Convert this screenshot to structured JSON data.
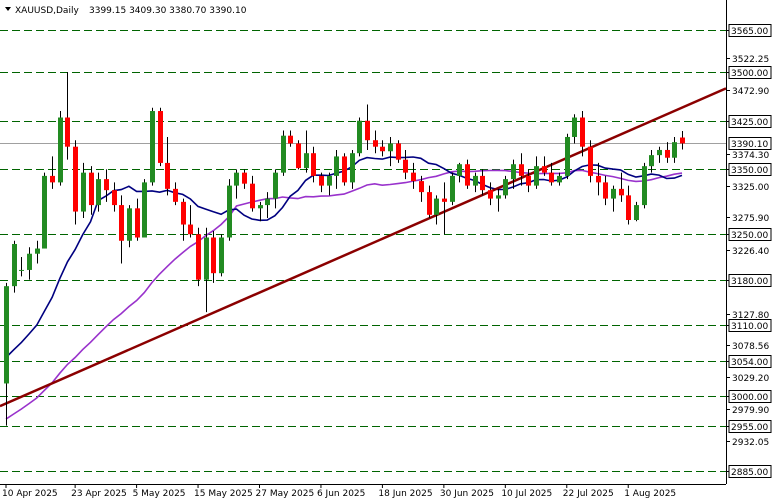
{
  "header": {
    "symbol": "XAUUSD,Daily",
    "ohlc": "3399.15 3409.30 3380.70 3390.10"
  },
  "chart_data": {
    "type": "candlestick",
    "symbol": "XAUUSD",
    "timeframe": "Daily",
    "ylim": [
      2865,
      3605
    ],
    "y_ticks": [
      "3522.25",
      "3472.90",
      "3374.30",
      "3325.00",
      "3275.90",
      "3226.40",
      "3127.80",
      "3078.56",
      "3029.20",
      "2979.90",
      "2932.05"
    ],
    "levels": [
      3565.0,
      3500.0,
      3425.0,
      3350.0,
      3250.0,
      3180.0,
      3110.0,
      3054.0,
      3000.0,
      2955.0,
      2885.0
    ],
    "level_labels": [
      "3565.00",
      "3500.00",
      "3425.00",
      "3350.00",
      "3250.00",
      "3180.00",
      "3110.00",
      "3054.00",
      "3000.00",
      "2955.00",
      "2885.00"
    ],
    "current_price": 3390.1,
    "current_price_label": "3390.10",
    "x_labels": [
      "10 Apr 2025",
      "23 Apr 2025",
      "5 May 2025",
      "15 May 2025",
      "27 May 2025",
      "6 Jun 2025",
      "18 Jun 2025",
      "30 Jun 2025",
      "10 Jul 2025",
      "22 Jul 2025",
      "1 Aug 2025"
    ],
    "x_label_index": [
      0,
      9,
      17,
      25,
      33,
      41,
      49,
      57,
      65,
      73,
      81
    ],
    "candles": [
      [
        3020,
        3175,
        2955,
        3170
      ],
      [
        3170,
        3240,
        3160,
        3235
      ],
      [
        3195,
        3215,
        3185,
        3195
      ],
      [
        3195,
        3230,
        3180,
        3220
      ],
      [
        3220,
        3240,
        3205,
        3228
      ],
      [
        3228,
        3345,
        3230,
        3340
      ],
      [
        3340,
        3370,
        3320,
        3330
      ],
      [
        3330,
        3440,
        3325,
        3430
      ],
      [
        3430,
        3500,
        3365,
        3385
      ],
      [
        3385,
        3395,
        3265,
        3285
      ],
      [
        3285,
        3360,
        3275,
        3345
      ],
      [
        3345,
        3355,
        3280,
        3295
      ],
      [
        3295,
        3345,
        3285,
        3335
      ],
      [
        3335,
        3350,
        3300,
        3318
      ],
      [
        3318,
        3330,
        3285,
        3295
      ],
      [
        3295,
        3310,
        3205,
        3240
      ],
      [
        3240,
        3295,
        3230,
        3290
      ],
      [
        3290,
        3305,
        3240,
        3245
      ],
      [
        3245,
        3335,
        3245,
        3330
      ],
      [
        3330,
        3445,
        3325,
        3440
      ],
      [
        3440,
        3445,
        3355,
        3360
      ],
      [
        3360,
        3400,
        3310,
        3320
      ],
      [
        3320,
        3330,
        3295,
        3300
      ],
      [
        3300,
        3305,
        3240,
        3265
      ],
      [
        3265,
        3295,
        3245,
        3250
      ],
      [
        3250,
        3260,
        3170,
        3180
      ],
      [
        3180,
        3260,
        3130,
        3245
      ],
      [
        3245,
        3255,
        3175,
        3190
      ],
      [
        3190,
        3250,
        3185,
        3245
      ],
      [
        3245,
        3335,
        3240,
        3325
      ],
      [
        3325,
        3350,
        3305,
        3345
      ],
      [
        3345,
        3350,
        3320,
        3328
      ],
      [
        3328,
        3340,
        3285,
        3290
      ],
      [
        3290,
        3300,
        3270,
        3295
      ],
      [
        3295,
        3315,
        3275,
        3305
      ],
      [
        3305,
        3350,
        3290,
        3345
      ],
      [
        3345,
        3410,
        3340,
        3402
      ],
      [
        3402,
        3410,
        3385,
        3390
      ],
      [
        3390,
        3395,
        3350,
        3352
      ],
      [
        3352,
        3410,
        3345,
        3375
      ],
      [
        3375,
        3385,
        3330,
        3340
      ],
      [
        3340,
        3345,
        3315,
        3325
      ],
      [
        3325,
        3345,
        3310,
        3340
      ],
      [
        3340,
        3380,
        3320,
        3370
      ],
      [
        3370,
        3375,
        3325,
        3330
      ],
      [
        3330,
        3380,
        3320,
        3375
      ],
      [
        3375,
        3430,
        3370,
        3425
      ],
      [
        3425,
        3450,
        3380,
        3395
      ],
      [
        3395,
        3410,
        3375,
        3385
      ],
      [
        3385,
        3395,
        3370,
        3378
      ],
      [
        3378,
        3400,
        3355,
        3390
      ],
      [
        3390,
        3395,
        3360,
        3365
      ],
      [
        3365,
        3380,
        3335,
        3345
      ],
      [
        3345,
        3360,
        3320,
        3332
      ],
      [
        3332,
        3340,
        3300,
        3315
      ],
      [
        3315,
        3325,
        3275,
        3280
      ],
      [
        3280,
        3310,
        3265,
        3305
      ],
      [
        3305,
        3330,
        3250,
        3300
      ],
      [
        3300,
        3345,
        3295,
        3340
      ],
      [
        3340,
        3360,
        3330,
        3358
      ],
      [
        3358,
        3365,
        3320,
        3325
      ],
      [
        3325,
        3345,
        3315,
        3340
      ],
      [
        3340,
        3350,
        3310,
        3318
      ],
      [
        3318,
        3330,
        3295,
        3305
      ],
      [
        3305,
        3320,
        3285,
        3310
      ],
      [
        3310,
        3340,
        3305,
        3335
      ],
      [
        3335,
        3365,
        3320,
        3358
      ],
      [
        3358,
        3375,
        3325,
        3340
      ],
      [
        3340,
        3350,
        3315,
        3325
      ],
      [
        3325,
        3370,
        3320,
        3355
      ],
      [
        3355,
        3370,
        3340,
        3345
      ],
      [
        3345,
        3360,
        3325,
        3330
      ],
      [
        3330,
        3345,
        3325,
        3340
      ],
      [
        3340,
        3405,
        3335,
        3400
      ],
      [
        3400,
        3435,
        3390,
        3430
      ],
      [
        3430,
        3440,
        3370,
        3385
      ],
      [
        3385,
        3395,
        3330,
        3340
      ],
      [
        3340,
        3360,
        3310,
        3330
      ],
      [
        3330,
        3340,
        3295,
        3305
      ],
      [
        3305,
        3325,
        3285,
        3320
      ],
      [
        3320,
        3345,
        3300,
        3310
      ],
      [
        3310,
        3325,
        3265,
        3272
      ],
      [
        3272,
        3300,
        3270,
        3295
      ],
      [
        3295,
        3360,
        3290,
        3355
      ],
      [
        3355,
        3380,
        3345,
        3372
      ],
      [
        3372,
        3385,
        3360,
        3380
      ],
      [
        3380,
        3392,
        3360,
        3368
      ],
      [
        3368,
        3400,
        3360,
        3392
      ],
      [
        3399.15,
        3409.3,
        3380.7,
        3390.1
      ]
    ],
    "sma_fast_color": "#000080",
    "sma_slow_color": "#9932cc",
    "trendline_color": "#8b0000",
    "trendline_points": [
      [
        0,
        2985
      ],
      [
        88,
        3445
      ]
    ],
    "bull_color": "#228b22",
    "bear_color": "#ff0000",
    "level_color": "#006400"
  }
}
